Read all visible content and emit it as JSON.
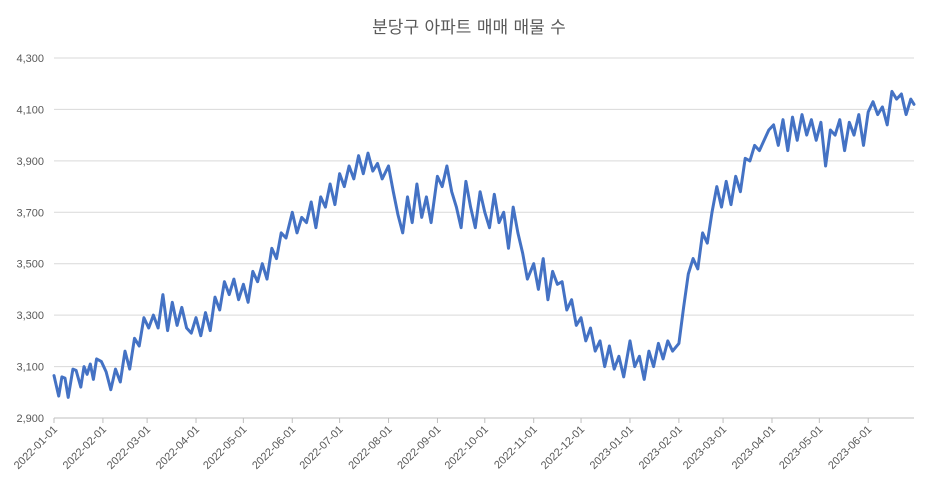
{
  "chart_data": {
    "type": "line",
    "title": "분당구 아파트 매매 매물 수",
    "xlabel": "",
    "ylabel": "",
    "ylim": [
      2900,
      4300
    ],
    "y_ticks": [
      "2,900",
      "3,100",
      "3,300",
      "3,500",
      "3,700",
      "3,900",
      "4,100",
      "4,300"
    ],
    "y_tick_values": [
      2900,
      3100,
      3300,
      3500,
      3700,
      3900,
      4100,
      4300
    ],
    "x_range": [
      "2022-01-01",
      "2023-06-30"
    ],
    "x_ticks": [
      "2022-01-01",
      "2022-02-01",
      "2022-03-01",
      "2022-04-01",
      "2022-05-01",
      "2022-06-01",
      "2022-07-01",
      "2022-08-01",
      "2022-09-01",
      "2022-10-01",
      "2022-11-01",
      "2022-12-01",
      "2023-01-01",
      "2023-02-01",
      "2023-03-01",
      "2023-04-01",
      "2023-05-01",
      "2023-06-01"
    ],
    "grid": true,
    "legend": "none",
    "line_color": "#4472c4",
    "series": [
      {
        "x": [
          "2022-01-01",
          "2022-01-04",
          "2022-01-06",
          "2022-01-08",
          "2022-01-10",
          "2022-01-13",
          "2022-01-15",
          "2022-01-18",
          "2022-01-20",
          "2022-01-22",
          "2022-01-24",
          "2022-01-26",
          "2022-01-28",
          "2022-01-31",
          "2022-02-03",
          "2022-02-06",
          "2022-02-09",
          "2022-02-12",
          "2022-02-15",
          "2022-02-18",
          "2022-02-21",
          "2022-02-24",
          "2022-02-27",
          "2022-03-02",
          "2022-03-05",
          "2022-03-08",
          "2022-03-11",
          "2022-03-14",
          "2022-03-17",
          "2022-03-20",
          "2022-03-23",
          "2022-03-26",
          "2022-03-29",
          "2022-04-01",
          "2022-04-04",
          "2022-04-07",
          "2022-04-10",
          "2022-04-13",
          "2022-04-16",
          "2022-04-19",
          "2022-04-22",
          "2022-04-25",
          "2022-04-28",
          "2022-05-01",
          "2022-05-04",
          "2022-05-07",
          "2022-05-10",
          "2022-05-13",
          "2022-05-16",
          "2022-05-19",
          "2022-05-22",
          "2022-05-25",
          "2022-05-28",
          "2022-06-01",
          "2022-06-04",
          "2022-06-07",
          "2022-06-10",
          "2022-06-13",
          "2022-06-16",
          "2022-06-19",
          "2022-06-22",
          "2022-06-25",
          "2022-06-28",
          "2022-07-01",
          "2022-07-04",
          "2022-07-07",
          "2022-07-10",
          "2022-07-13",
          "2022-07-16",
          "2022-07-19",
          "2022-07-22",
          "2022-07-25",
          "2022-07-28",
          "2022-08-01",
          "2022-08-04",
          "2022-08-07",
          "2022-08-10",
          "2022-08-13",
          "2022-08-16",
          "2022-08-19",
          "2022-08-22",
          "2022-08-25",
          "2022-08-28",
          "2022-09-01",
          "2022-09-04",
          "2022-09-07",
          "2022-09-10",
          "2022-09-13",
          "2022-09-16",
          "2022-09-19",
          "2022-09-22",
          "2022-09-25",
          "2022-09-28",
          "2022-10-01",
          "2022-10-04",
          "2022-10-07",
          "2022-10-10",
          "2022-10-13",
          "2022-10-16",
          "2022-10-19",
          "2022-10-22",
          "2022-10-25",
          "2022-10-28",
          "2022-11-01",
          "2022-11-04",
          "2022-11-07",
          "2022-11-10",
          "2022-11-13",
          "2022-11-16",
          "2022-11-19",
          "2022-11-22",
          "2022-11-25",
          "2022-11-28",
          "2022-12-01",
          "2022-12-04",
          "2022-12-07",
          "2022-12-10",
          "2022-12-13",
          "2022-12-16",
          "2022-12-19",
          "2022-12-22",
          "2022-12-25",
          "2022-12-28",
          "2023-01-01",
          "2023-01-04",
          "2023-01-07",
          "2023-01-10",
          "2023-01-13",
          "2023-01-16",
          "2023-01-19",
          "2023-01-22",
          "2023-01-25",
          "2023-01-28",
          "2023-02-01",
          "2023-02-04",
          "2023-02-07",
          "2023-02-10",
          "2023-02-13",
          "2023-02-16",
          "2023-02-19",
          "2023-02-22",
          "2023-02-25",
          "2023-02-28",
          "2023-03-03",
          "2023-03-06",
          "2023-03-09",
          "2023-03-12",
          "2023-03-15",
          "2023-03-18",
          "2023-03-21",
          "2023-03-24",
          "2023-03-27",
          "2023-03-30",
          "2023-04-02",
          "2023-04-05",
          "2023-04-08",
          "2023-04-11",
          "2023-04-14",
          "2023-04-17",
          "2023-04-20",
          "2023-04-23",
          "2023-04-26",
          "2023-04-29",
          "2023-05-02",
          "2023-05-05",
          "2023-05-08",
          "2023-05-11",
          "2023-05-14",
          "2023-05-17",
          "2023-05-20",
          "2023-05-23",
          "2023-05-26",
          "2023-05-29",
          "2023-06-01",
          "2023-06-04",
          "2023-06-07",
          "2023-06-10",
          "2023-06-13",
          "2023-06-16",
          "2023-06-19",
          "2023-06-22",
          "2023-06-25",
          "2023-06-28",
          "2023-06-30"
        ],
        "values": [
          3065,
          2985,
          3060,
          3055,
          2980,
          3090,
          3085,
          3020,
          3100,
          3070,
          3110,
          3050,
          3130,
          3120,
          3080,
          3010,
          3090,
          3040,
          3160,
          3090,
          3210,
          3180,
          3290,
          3250,
          3300,
          3250,
          3380,
          3240,
          3350,
          3260,
          3330,
          3250,
          3230,
          3290,
          3220,
          3310,
          3240,
          3370,
          3320,
          3430,
          3380,
          3440,
          3360,
          3420,
          3350,
          3470,
          3430,
          3500,
          3440,
          3560,
          3520,
          3620,
          3600,
          3700,
          3620,
          3680,
          3660,
          3740,
          3640,
          3760,
          3720,
          3810,
          3730,
          3850,
          3800,
          3880,
          3830,
          3920,
          3850,
          3930,
          3860,
          3890,
          3830,
          3880,
          3780,
          3690,
          3620,
          3760,
          3660,
          3810,
          3680,
          3760,
          3660,
          3840,
          3800,
          3880,
          3780,
          3720,
          3640,
          3820,
          3720,
          3640,
          3780,
          3700,
          3640,
          3770,
          3660,
          3700,
          3560,
          3720,
          3620,
          3540,
          3440,
          3500,
          3400,
          3520,
          3360,
          3470,
          3420,
          3430,
          3320,
          3360,
          3260,
          3290,
          3200,
          3250,
          3160,
          3200,
          3100,
          3180,
          3090,
          3140,
          3060,
          3200,
          3100,
          3140,
          3050,
          3160,
          3100,
          3190,
          3130,
          3200,
          3160,
          3190,
          3330,
          3460,
          3520,
          3480,
          3620,
          3580,
          3700,
          3800,
          3720,
          3820,
          3730,
          3840,
          3780,
          3910,
          3900,
          3960,
          3940,
          3980,
          4020,
          4040,
          3960,
          4060,
          3940,
          4070,
          3980,
          4080,
          4000,
          4060,
          3980,
          4050,
          3880,
          4020,
          4000,
          4060,
          3940,
          4050,
          4000,
          4080,
          3960,
          4090,
          4130,
          4080,
          4110,
          4040,
          4170,
          4140,
          4160,
          4080,
          4140,
          4120
        ]
      }
    ]
  }
}
